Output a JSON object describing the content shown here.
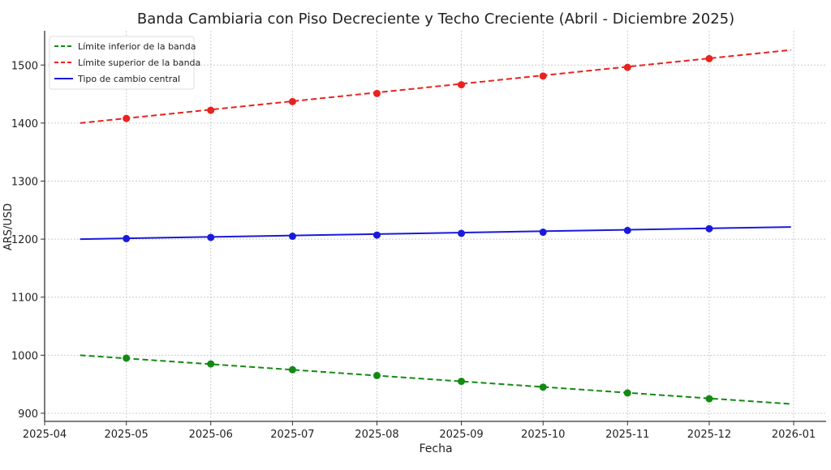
{
  "chart_data": {
    "type": "line",
    "title": "Banda Cambiaria con Piso Decreciente y Techo Creciente (Abril - Diciembre 2025)",
    "xlabel": "Fecha",
    "ylabel": "ARS/USD",
    "xlim": [
      "2025-04-01",
      "2026-01-08"
    ],
    "ylim": [
      886,
      1559
    ],
    "grid": true,
    "legend_position": "top-left",
    "x_ticks": [
      "2025-04",
      "2025-05",
      "2025-06",
      "2025-07",
      "2025-08",
      "2025-09",
      "2025-10",
      "2025-11",
      "2025-12",
      "2026-01"
    ],
    "y_ticks": [
      900,
      1000,
      1100,
      1200,
      1300,
      1400,
      1500
    ],
    "line_start": "2025-04-14",
    "line_end": "2025-12-31",
    "marker_dates": [
      "2025-05-01",
      "2025-06-01",
      "2025-07-01",
      "2025-08-01",
      "2025-09-01",
      "2025-10-01",
      "2025-11-01",
      "2025-12-01"
    ],
    "series": [
      {
        "name": "Límite inferior de la banda",
        "color": "#138a13",
        "style": "dashed",
        "start": 1000,
        "end": 916,
        "markers": [
          995,
          985,
          975,
          965,
          955,
          945,
          935,
          925
        ]
      },
      {
        "name": "Límite superior de la banda",
        "color": "#e8231f",
        "style": "dashed",
        "start": 1400,
        "end": 1526,
        "markers": [
          1408,
          1422,
          1437,
          1451,
          1466,
          1481,
          1496,
          1511
        ]
      },
      {
        "name": "Tipo de cambio central",
        "color": "#1a1adb",
        "style": "solid",
        "start": 1200,
        "end": 1221,
        "markers": [
          1201,
          1203,
          1205,
          1207,
          1210,
          1212,
          1215,
          1218
        ]
      }
    ]
  }
}
